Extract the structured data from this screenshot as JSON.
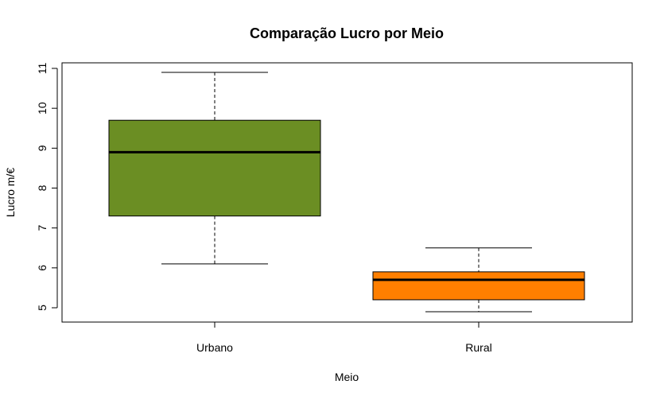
{
  "chart_data": {
    "type": "boxplot",
    "title": "Comparação Lucro por Meio",
    "xlabel": "Meio",
    "ylabel": "Lucro m/€",
    "ylim": [
      4.6,
      11.1
    ],
    "yticks": [
      "5",
      "6",
      "7",
      "8",
      "9",
      "10",
      "11"
    ],
    "categories": [
      "Urbano",
      "Rural"
    ],
    "boxes": [
      {
        "category": "Urbano",
        "min": 6.1,
        "q1": 7.3,
        "median": 8.9,
        "q3": 9.7,
        "max": 10.9,
        "color": "#6B8E23"
      },
      {
        "category": "Rural",
        "min": 4.9,
        "q1": 5.2,
        "median": 5.7,
        "q3": 5.9,
        "max": 6.5,
        "color": "#FF7F00"
      }
    ],
    "grid": false,
    "legend": "none"
  }
}
